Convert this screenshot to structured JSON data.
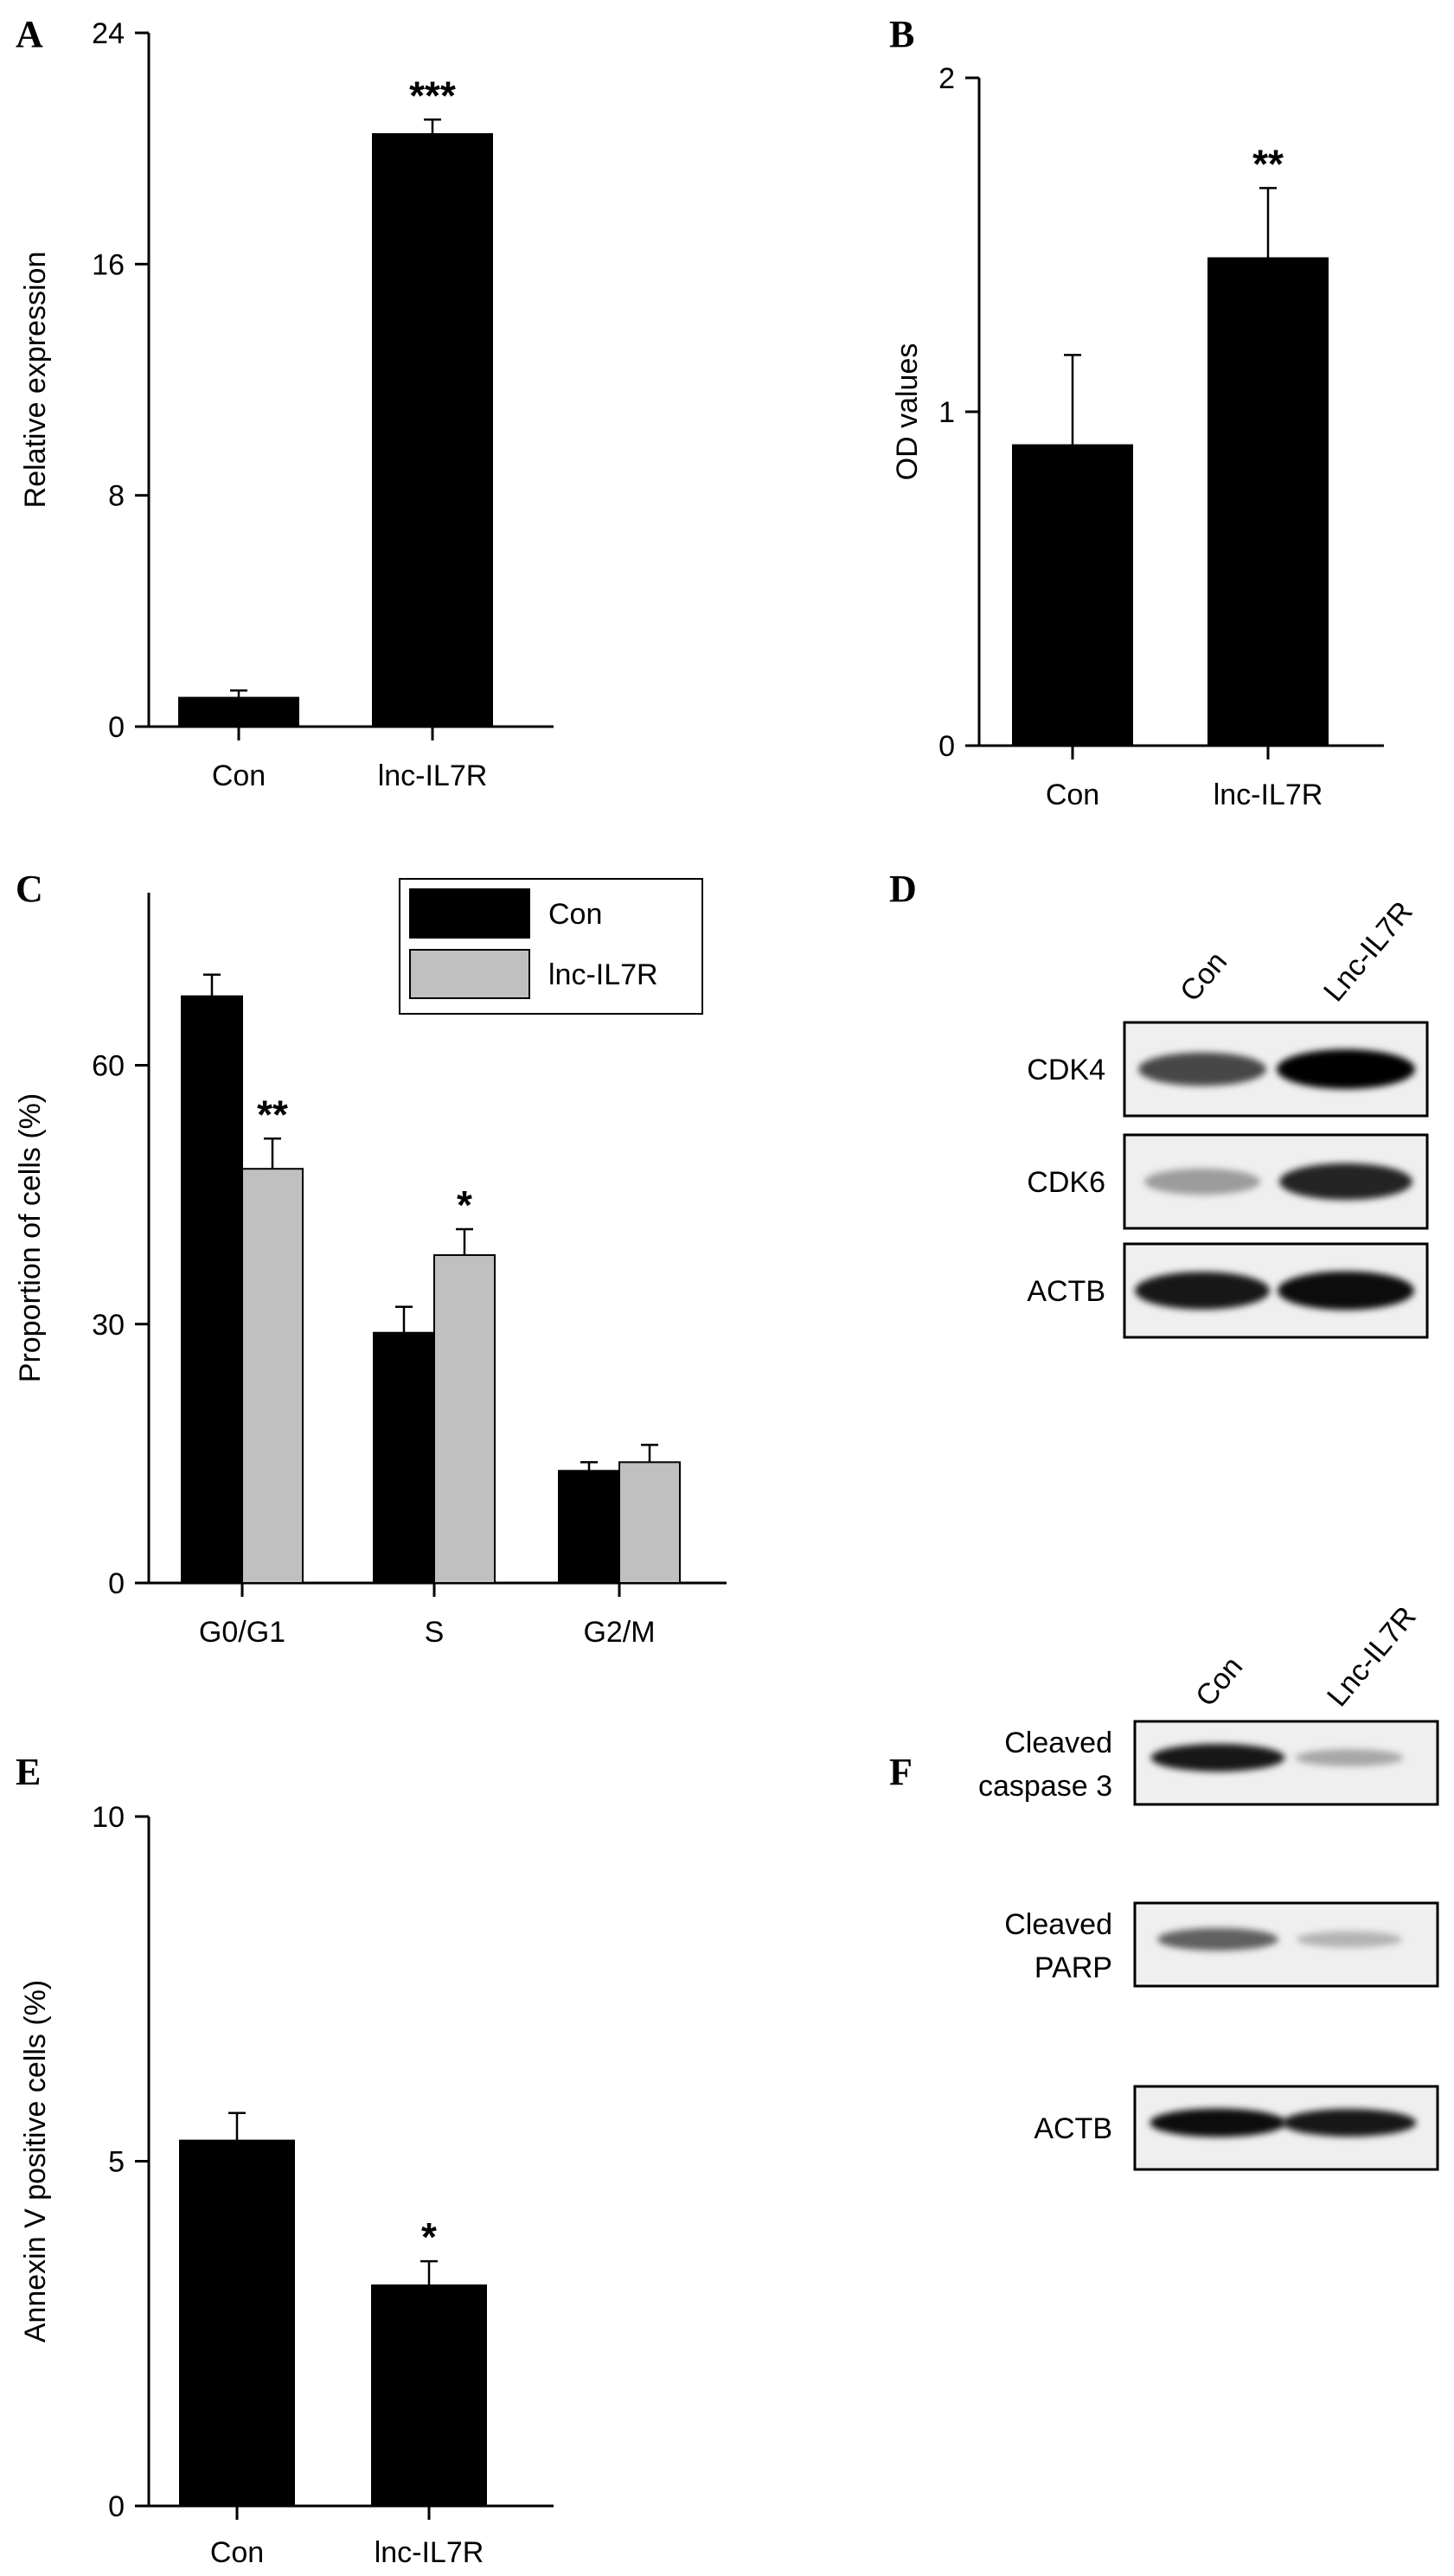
{
  "panels": {
    "A": "A",
    "B": "B",
    "C": "C",
    "D": "D",
    "E": "E",
    "F": "F"
  },
  "chart_data": [
    {
      "id": "A",
      "type": "bar",
      "title": "",
      "xlabel": "",
      "ylabel": "Relative expression",
      "categories": [
        "Con",
        "lnc-IL7R"
      ],
      "values": [
        1.0,
        20.5
      ],
      "errors": [
        0.25,
        0.5
      ],
      "significance": [
        "",
        "***"
      ],
      "ylim": [
        0,
        24
      ],
      "yticks": [
        0,
        8,
        16,
        24
      ],
      "ytick_labels": [
        "0",
        "8",
        "16",
        "24"
      ],
      "colors": [
        "#000000",
        "#000000"
      ]
    },
    {
      "id": "B",
      "type": "bar",
      "title": "",
      "xlabel": "",
      "ylabel": "OD values",
      "categories": [
        "Con",
        "lnc-IL7R"
      ],
      "values": [
        0.9,
        1.46
      ],
      "errors": [
        0.27,
        0.21
      ],
      "significance": [
        "",
        "**"
      ],
      "ylim": [
        0,
        2
      ],
      "yticks": [
        0,
        1,
        2
      ],
      "ytick_labels": [
        "0",
        "1",
        "2"
      ],
      "colors": [
        "#000000",
        "#000000"
      ]
    },
    {
      "id": "C",
      "type": "bar",
      "title": "",
      "xlabel": "",
      "ylabel": "Proportion of cells (%)",
      "categories": [
        "G0/G1",
        "S",
        "G2/M"
      ],
      "series": [
        {
          "name": "Con",
          "values": [
            68,
            29,
            13
          ],
          "errors": [
            2.5,
            3.0,
            1.0
          ],
          "significance": [
            "",
            "",
            ""
          ],
          "color": "#000000"
        },
        {
          "name": "lnc-IL7R",
          "values": [
            48,
            38,
            14
          ],
          "errors": [
            3.5,
            3.0,
            2.0
          ],
          "significance": [
            "**",
            "*",
            ""
          ],
          "color": "#c0c0c0"
        }
      ],
      "ylim": [
        0,
        80
      ],
      "yticks": [
        0,
        30,
        60
      ],
      "ytick_labels": [
        "0",
        "30",
        "60"
      ],
      "legend_position": "top-right"
    },
    {
      "id": "E",
      "type": "bar",
      "title": "",
      "xlabel": "",
      "ylabel": "Annexin V positive cells (%)",
      "categories": [
        "Con",
        "lnc-IL7R"
      ],
      "values": [
        5.3,
        3.2
      ],
      "errors": [
        0.4,
        0.35
      ],
      "significance": [
        "",
        "*"
      ],
      "ylim": [
        0,
        10
      ],
      "yticks": [
        0,
        5,
        10
      ],
      "ytick_labels": [
        "0",
        "5",
        "10"
      ],
      "colors": [
        "#000000",
        "#000000"
      ]
    }
  ],
  "blots": {
    "D": {
      "lanes": [
        "Con",
        "Lnc-IL7R"
      ],
      "rows": [
        {
          "label": "CDK4",
          "intensity": [
            0.7,
            1.0
          ]
        },
        {
          "label": "CDK6",
          "intensity": [
            0.35,
            0.85
          ]
        },
        {
          "label": "ACTB",
          "intensity": [
            0.9,
            0.95
          ]
        }
      ]
    },
    "F": {
      "lanes": [
        "Con",
        "Lnc-IL7R"
      ],
      "rows": [
        {
          "label_line1": "Cleaved",
          "label_line2": "caspase 3",
          "intensity": [
            0.9,
            0.3
          ]
        },
        {
          "label_line1": "Cleaved",
          "label_line2": "PARP",
          "intensity": [
            0.6,
            0.25
          ]
        },
        {
          "label_line1": "ACTB",
          "label_line2": "",
          "intensity": [
            0.95,
            0.9
          ]
        }
      ]
    }
  }
}
